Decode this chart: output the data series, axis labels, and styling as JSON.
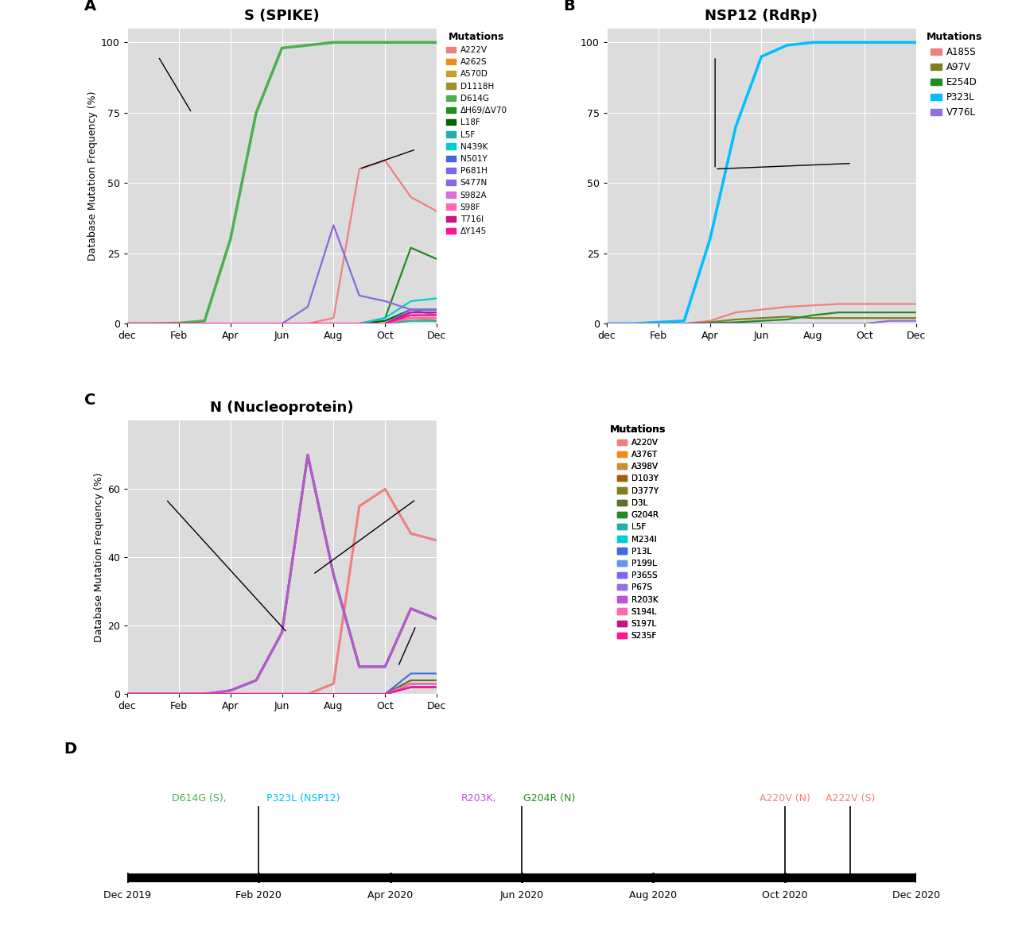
{
  "spike_colors": {
    "A222V": "#F08080",
    "A262S": "#E8901A",
    "A570D": "#C8A030",
    "D1118H": "#A09030",
    "D614G": "#4CAF50",
    "ΔH69/ΔV70": "#228B22",
    "L18F": "#006400",
    "L5F": "#20B2AA",
    "N439K": "#00CED1",
    "N501Y": "#4169E1",
    "P681H": "#7B68EE",
    "S477N": "#8A68DD",
    "S982A": "#DA70D6",
    "S98F": "#FF69B4",
    "T716I": "#C71585",
    "ΔY145": "#FF1493"
  },
  "spike_legend_order": [
    "A222V",
    "A262S",
    "A570D",
    "D1118H",
    "D614G",
    "ΔH69/ΔV70",
    "L18F",
    "L5F",
    "N439K",
    "N501Y",
    "P681H",
    "S477N",
    "S982A",
    "S98F",
    "T716I",
    "ΔY145"
  ],
  "spike_data": {
    "D614G": [
      0,
      0,
      0.2,
      1,
      30,
      75,
      98,
      99,
      100,
      100,
      100,
      100,
      100
    ],
    "A222V": [
      0,
      0,
      0,
      0,
      0,
      0,
      0,
      0,
      2,
      55,
      58,
      45,
      40
    ],
    "S477N": [
      0,
      0,
      0,
      0,
      0,
      0,
      0,
      6,
      35,
      10,
      8,
      5,
      3
    ],
    "ΔH69/ΔV70": [
      0,
      0,
      0,
      0,
      0,
      0,
      0,
      0,
      0,
      0,
      2,
      27,
      23
    ],
    "L18F": [
      0,
      0,
      0,
      0,
      0,
      0,
      0,
      0,
      0,
      0,
      1,
      5,
      5
    ],
    "N439K": [
      0,
      0,
      0,
      0,
      0,
      0,
      0,
      0,
      0,
      0,
      2,
      8,
      9
    ],
    "P681H": [
      0,
      0,
      0,
      0,
      0,
      0,
      0,
      0,
      0,
      0,
      0,
      5,
      5
    ],
    "N501Y": [
      0,
      0,
      0,
      0,
      0,
      0,
      0,
      0,
      0,
      0,
      0,
      4,
      4
    ],
    "T716I": [
      0,
      0,
      0,
      0,
      0,
      0,
      0,
      0,
      0,
      0,
      0,
      4,
      4
    ],
    "S982A": [
      0,
      0,
      0,
      0,
      0,
      0,
      0,
      0,
      0,
      0,
      0,
      3,
      3
    ],
    "ΔY145": [
      0,
      0,
      0,
      0,
      0,
      0,
      0,
      0,
      0,
      0,
      0,
      3,
      3
    ],
    "A570D": [
      0,
      0,
      0,
      0,
      0,
      0,
      0,
      0,
      0,
      0,
      0,
      2,
      2
    ],
    "A262S": [
      0,
      0,
      0,
      0,
      0,
      0,
      0,
      0,
      0,
      0,
      0,
      2,
      1
    ],
    "D1118H": [
      0,
      0,
      0,
      0,
      0,
      0,
      0,
      0,
      0,
      0,
      0,
      2,
      2
    ],
    "S98F": [
      0,
      0,
      0,
      0,
      0,
      0,
      0,
      0,
      0,
      0,
      0,
      2,
      2
    ],
    "L5F": [
      0,
      0,
      0,
      0,
      0,
      0,
      0,
      0,
      0,
      0,
      0,
      1,
      1
    ]
  },
  "nsp12_colors": {
    "A185S": "#F08080",
    "A97V": "#808020",
    "E254D": "#228B22",
    "P323L": "#00BFFF",
    "V776L": "#9370DB"
  },
  "nsp12_legend_order": [
    "A185S",
    "A97V",
    "E254D",
    "P323L",
    "V776L"
  ],
  "nsp12_data": {
    "A185S": [
      0,
      0,
      0,
      0,
      1,
      4,
      5,
      6,
      6.5,
      7,
      7,
      7,
      7
    ],
    "A97V": [
      0,
      0,
      0,
      0,
      0.5,
      1.5,
      2,
      2.5,
      2,
      2,
      2,
      2,
      2
    ],
    "E254D": [
      0,
      0,
      0,
      0,
      0.2,
      0.5,
      1,
      1.5,
      3,
      4,
      4,
      4,
      4
    ],
    "P323L": [
      0,
      0,
      0.5,
      1,
      30,
      70,
      95,
      99,
      100,
      100,
      100,
      100,
      100
    ],
    "V776L": [
      0,
      0,
      0,
      0,
      0,
      0,
      0,
      0,
      0,
      0,
      0,
      1,
      1
    ]
  },
  "nucleo_colors": {
    "A220V": "#F08080",
    "A376T": "#E8901A",
    "A398V": "#C89030",
    "D103Y": "#A06010",
    "D377Y": "#808020",
    "D3L": "#607030",
    "G204R": "#228B22",
    "L5F": "#20B2AA",
    "M234I": "#00CED1",
    "P13L": "#4169E1",
    "P199L": "#6495ED",
    "P365S": "#7B68EE",
    "P67S": "#9370DB",
    "R203K": "#BA55D3",
    "S194L": "#FF69B4",
    "S197L": "#C71585",
    "S235F": "#FF1493"
  },
  "nucleo_legend_order": [
    "A220V",
    "A376T",
    "A398V",
    "D103Y",
    "D377Y",
    "D3L",
    "G204R",
    "L5F",
    "M234I",
    "P13L",
    "P199L",
    "P365S",
    "P67S",
    "R203K",
    "S194L",
    "S197L",
    "S235F"
  ],
  "nucleo_data": {
    "A220V": [
      0,
      0,
      0,
      0,
      0,
      0,
      0,
      0,
      3,
      55,
      60,
      47,
      45
    ],
    "A376T": [
      0,
      0,
      0,
      0,
      0,
      0,
      0,
      0,
      0,
      0,
      0,
      3,
      3
    ],
    "A398V": [
      0,
      0,
      0,
      0,
      0,
      0,
      0,
      0,
      0,
      0,
      0,
      4,
      4
    ],
    "D103Y": [
      0,
      0,
      0,
      0,
      0,
      0,
      0,
      0,
      0,
      0,
      0,
      2,
      2
    ],
    "D377Y": [
      0,
      0,
      0,
      0,
      0,
      0,
      0,
      0,
      0,
      0,
      0,
      2,
      2
    ],
    "D3L": [
      0,
      0,
      0,
      0,
      0,
      0,
      0,
      0,
      0,
      0,
      0,
      4,
      4
    ],
    "G204R": [
      0,
      0,
      0,
      0,
      1,
      4,
      18,
      70,
      35,
      8,
      8,
      25,
      22
    ],
    "L5F": [
      0,
      0,
      0,
      0,
      0,
      0,
      0,
      0,
      0,
      0,
      0,
      2,
      2
    ],
    "M234I": [
      0,
      0,
      0,
      0,
      0,
      0,
      0,
      0,
      0,
      0,
      0,
      2,
      2
    ],
    "P13L": [
      0,
      0,
      0,
      0,
      0,
      0,
      0,
      0,
      0,
      0,
      0,
      6,
      6
    ],
    "P199L": [
      0,
      0,
      0,
      0,
      0,
      0,
      0,
      0,
      0,
      0,
      0,
      3,
      3
    ],
    "P365S": [
      0,
      0,
      0,
      0,
      0,
      0,
      0,
      0,
      0,
      0,
      0,
      3,
      3
    ],
    "P67S": [
      0,
      0,
      0,
      0,
      0,
      0,
      0,
      0,
      0,
      0,
      0,
      2,
      2
    ],
    "R203K": [
      0,
      0,
      0,
      0,
      1,
      4,
      18,
      70,
      35,
      8,
      8,
      25,
      22
    ],
    "S194L": [
      0,
      0,
      0,
      0,
      0,
      0,
      0,
      0,
      0,
      0,
      0,
      3,
      3
    ],
    "S197L": [
      0,
      0,
      0,
      0,
      0,
      0,
      0,
      0,
      0,
      0,
      0,
      2,
      2
    ],
    "S235F": [
      0,
      0,
      0,
      0,
      0,
      0,
      0,
      0,
      0,
      0,
      0,
      2,
      2
    ]
  },
  "x_months": [
    0,
    1,
    2,
    3,
    4,
    5,
    6,
    7,
    8,
    9,
    10,
    11,
    12
  ],
  "xlabel_ticks": [
    "dec",
    "Feb",
    "Apr",
    "Jun",
    "Aug",
    "Oct",
    "Dec"
  ],
  "bg_color": "#DCDCDC",
  "grid_color": "white",
  "ylabel": "Database Mutation Frequency (%)",
  "title_A": "S (SPIKE)",
  "title_B": "NSP12 (RdRp)",
  "title_C": "N (Nucleoprotein)",
  "ylim_AB": [
    0,
    105
  ],
  "yticks_AB": [
    0,
    25,
    50,
    75,
    100
  ],
  "ylim_C": [
    0,
    80
  ],
  "yticks_C": [
    0,
    20,
    40,
    60
  ],
  "timeline_ticks": [
    "Dec 2019",
    "Feb 2020",
    "Apr 2020",
    "Jun 2020",
    "Aug 2020",
    "Oct 2020",
    "Dec 2020"
  ],
  "D614G_color": "#4CAF50",
  "P323L_color": "#00BFFF",
  "R203K_color": "#BA55D3",
  "G204R_color": "#228B22",
  "A220V_color": "#F08080",
  "A222V_color": "#F08080"
}
